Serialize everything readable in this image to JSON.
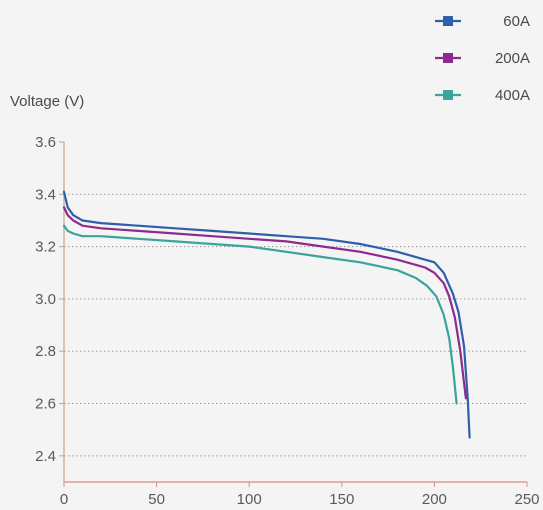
{
  "chart_data": {
    "type": "line",
    "title": "",
    "xlabel": "",
    "ylabel": "Voltage (V)",
    "xlim": [
      0,
      250
    ],
    "ylim": [
      2.3,
      3.6
    ],
    "xticks": [
      0,
      50,
      100,
      150,
      200,
      250
    ],
    "yticks": [
      3.6,
      3.4,
      3.2,
      3.0,
      2.8,
      2.6,
      2.4
    ],
    "x_tick_labels": [
      "0",
      "50",
      "100",
      "150",
      "200",
      "250"
    ],
    "y_tick_labels": [
      "3.6",
      "3.4",
      "3.2",
      "3.0",
      "2.8",
      "2.6",
      "2.4"
    ],
    "grid": "horizontal-dotted",
    "legend_position": "top-right",
    "series": [
      {
        "name": "60A",
        "color": "#2e5fa8",
        "x": [
          0,
          2,
          5,
          10,
          20,
          40,
          60,
          80,
          100,
          120,
          140,
          160,
          180,
          195,
          200,
          205,
          210,
          213,
          216,
          218,
          219
        ],
        "y": [
          3.41,
          3.35,
          3.32,
          3.3,
          3.29,
          3.28,
          3.27,
          3.26,
          3.25,
          3.24,
          3.23,
          3.21,
          3.18,
          3.15,
          3.14,
          3.1,
          3.02,
          2.95,
          2.82,
          2.62,
          2.47
        ]
      },
      {
        "name": "200A",
        "color": "#8e2a8e",
        "x": [
          0,
          2,
          5,
          10,
          20,
          40,
          60,
          80,
          100,
          120,
          140,
          160,
          180,
          195,
          200,
          205,
          208,
          211,
          214,
          216,
          217
        ],
        "y": [
          3.35,
          3.32,
          3.3,
          3.28,
          3.27,
          3.26,
          3.25,
          3.24,
          3.23,
          3.22,
          3.2,
          3.18,
          3.15,
          3.12,
          3.1,
          3.06,
          3.01,
          2.93,
          2.8,
          2.68,
          2.62
        ]
      },
      {
        "name": "400A",
        "color": "#3aa39a",
        "x": [
          0,
          2,
          5,
          10,
          20,
          40,
          60,
          80,
          100,
          120,
          140,
          160,
          180,
          190,
          196,
          201,
          205,
          208,
          210,
          212
        ],
        "y": [
          3.28,
          3.26,
          3.25,
          3.24,
          3.24,
          3.23,
          3.22,
          3.21,
          3.2,
          3.18,
          3.16,
          3.14,
          3.11,
          3.08,
          3.05,
          3.01,
          2.94,
          2.85,
          2.74,
          2.6
        ]
      }
    ]
  }
}
